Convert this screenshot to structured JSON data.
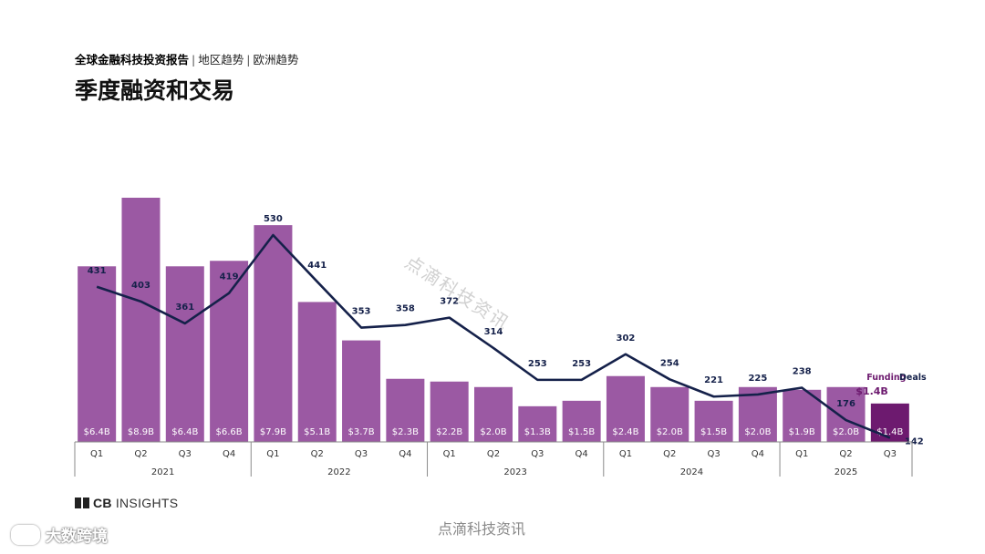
{
  "header": {
    "report": "全球金融科技投资报告",
    "sep": "|",
    "region": "地区趋势",
    "sub": "欧洲趋势",
    "title": "季度融资和交易"
  },
  "chart_data": {
    "type": "bar",
    "title": "季度融资和交易",
    "quarters": [
      "Q1",
      "Q2",
      "Q3",
      "Q4",
      "Q1",
      "Q2",
      "Q3",
      "Q4",
      "Q1",
      "Q2",
      "Q3",
      "Q4",
      "Q1",
      "Q2",
      "Q3",
      "Q4",
      "Q1",
      "Q2",
      "Q3"
    ],
    "years": [
      {
        "label": "2021",
        "span": 4
      },
      {
        "label": "2022",
        "span": 4
      },
      {
        "label": "2023",
        "span": 4
      },
      {
        "label": "2024",
        "span": 4
      },
      {
        "label": "2025",
        "span": 3
      }
    ],
    "series": [
      {
        "name": "Funding",
        "unit": "$B",
        "type": "bar",
        "values": [
          6.4,
          8.9,
          6.4,
          6.6,
          7.9,
          5.1,
          3.7,
          2.3,
          2.2,
          2.0,
          1.3,
          1.5,
          2.4,
          2.0,
          1.5,
          2.0,
          1.9,
          2.0,
          1.4
        ],
        "labels": [
          "$6.4B",
          "$8.9B",
          "$6.4B",
          "$6.6B",
          "$7.9B",
          "$5.1B",
          "$3.7B",
          "$2.3B",
          "$2.2B",
          "$2.0B",
          "$1.3B",
          "$1.5B",
          "$2.4B",
          "$2.0B",
          "$1.5B",
          "$2.0B",
          "$1.9B",
          "$2.0B",
          "$1.4B"
        ]
      },
      {
        "name": "Deals",
        "type": "line",
        "values": [
          431,
          403,
          361,
          419,
          530,
          441,
          353,
          358,
          372,
          314,
          253,
          253,
          302,
          254,
          221,
          225,
          238,
          176,
          142
        ]
      }
    ],
    "legend": {
      "funding": "Funding",
      "deals": "Deals"
    },
    "colors": {
      "bar": "#9b59a3",
      "bar_highlight": "#6d1a6f",
      "line": "#15214a",
      "bar_label": "#ffffff",
      "axis": "#8a8a8a"
    }
  },
  "footer": {
    "brand_prefix": "CB",
    "brand_suffix": "INSIGHTS",
    "watermark": "点滴科技资讯",
    "watermark_diagonal": "点滴科技资讯",
    "watermark_corner": "大数跨境"
  }
}
